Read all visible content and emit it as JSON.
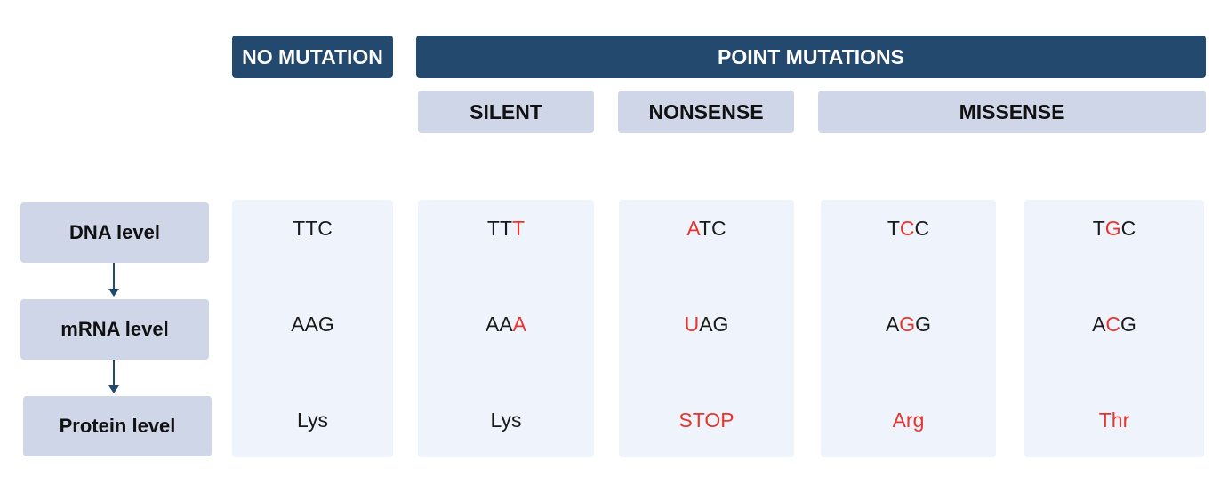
{
  "headers": {
    "no_mutation": "NO MUTATION",
    "point_mutations": "POINT MUTATIONS",
    "silent": "SILENT",
    "nonsense": "NONSENSE",
    "missense": "MISSENSE"
  },
  "rows": {
    "dna": "DNA level",
    "mrna": "mRNA level",
    "protein": "Protein level"
  },
  "columns": [
    {
      "dna": [
        {
          "t": "TTC",
          "m": false
        }
      ],
      "mrna": [
        {
          "t": "AAG",
          "m": false
        }
      ],
      "protein": {
        "t": "Lys",
        "m": false
      }
    },
    {
      "dna": [
        {
          "t": "TT",
          "m": false
        },
        {
          "t": "T",
          "m": true
        }
      ],
      "mrna": [
        {
          "t": "AA",
          "m": false
        },
        {
          "t": "A",
          "m": true
        }
      ],
      "protein": {
        "t": "Lys",
        "m": false
      }
    },
    {
      "dna": [
        {
          "t": "A",
          "m": true
        },
        {
          "t": "TC",
          "m": false
        }
      ],
      "mrna": [
        {
          "t": "U",
          "m": true
        },
        {
          "t": "AG",
          "m": false
        }
      ],
      "protein": {
        "t": "STOP",
        "m": true
      }
    },
    {
      "dna": [
        {
          "t": "T",
          "m": false
        },
        {
          "t": "C",
          "m": true
        },
        {
          "t": "C",
          "m": false
        }
      ],
      "mrna": [
        {
          "t": "A",
          "m": false
        },
        {
          "t": "G",
          "m": true
        },
        {
          "t": "G",
          "m": false
        }
      ],
      "protein": {
        "t": "Arg",
        "m": true
      }
    },
    {
      "dna": [
        {
          "t": "T",
          "m": false
        },
        {
          "t": "G",
          "m": true
        },
        {
          "t": "C",
          "m": false
        }
      ],
      "mrna": [
        {
          "t": "A",
          "m": false
        },
        {
          "t": "C",
          "m": true
        },
        {
          "t": "G",
          "m": false
        }
      ],
      "protein": {
        "t": "Thr",
        "m": true
      }
    }
  ],
  "colors": {
    "dark_header": "#24496f",
    "light_header": "#cfd6e8",
    "column_bg": "#eff4fc",
    "mutation": "#e8342e"
  }
}
